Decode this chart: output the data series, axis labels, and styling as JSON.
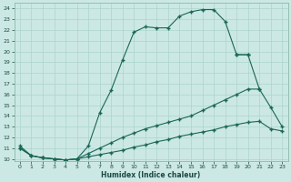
{
  "xlabel": "Humidex (Indice chaleur)",
  "bg_color": "#cce8e4",
  "grid_color": "#aad4cc",
  "line_color": "#1a6655",
  "xlim": [
    -0.5,
    23.5
  ],
  "ylim": [
    9.8,
    24.5
  ],
  "xticks": [
    0,
    1,
    2,
    3,
    4,
    5,
    6,
    7,
    8,
    9,
    10,
    11,
    12,
    13,
    14,
    15,
    16,
    17,
    18,
    19,
    20,
    21,
    22,
    23
  ],
  "yticks": [
    10,
    11,
    12,
    13,
    14,
    15,
    16,
    17,
    18,
    19,
    20,
    21,
    22,
    23,
    24
  ],
  "line1_x": [
    0,
    1,
    2,
    3,
    4,
    5,
    6,
    7,
    8,
    9,
    10,
    11,
    12,
    13,
    14,
    15,
    16,
    17,
    18,
    19,
    20
  ],
  "line1_y": [
    11.2,
    10.3,
    10.1,
    10.0,
    9.9,
    10.0,
    11.2,
    14.3,
    16.4,
    19.2,
    21.8,
    22.3,
    22.2,
    22.2,
    23.3,
    23.7,
    23.9,
    23.9,
    22.8,
    19.7,
    19.7
  ],
  "line2_x": [
    19,
    20,
    21,
    22,
    23
  ],
  "line2_y": [
    19.7,
    19.7,
    16.5,
    14.8,
    13.0
  ],
  "line3_x": [
    0,
    1,
    2,
    3,
    4,
    5,
    6,
    7,
    8,
    9,
    10,
    11,
    12,
    13,
    14,
    15,
    16,
    17,
    18,
    19,
    20,
    21
  ],
  "line3_y": [
    11.0,
    10.3,
    10.1,
    10.0,
    9.9,
    10.0,
    10.5,
    11.0,
    11.5,
    12.0,
    12.4,
    12.8,
    13.1,
    13.4,
    13.7,
    14.0,
    14.5,
    15.0,
    15.5,
    16.0,
    16.5,
    16.5
  ],
  "line4_x": [
    0,
    1,
    2,
    3,
    4,
    5,
    6,
    7,
    8,
    9,
    10,
    11,
    12,
    13,
    14,
    15,
    16,
    17,
    18,
    19,
    20,
    21,
    22,
    23
  ],
  "line4_y": [
    11.0,
    10.3,
    10.1,
    10.0,
    9.9,
    10.0,
    10.2,
    10.4,
    10.6,
    10.8,
    11.1,
    11.3,
    11.6,
    11.8,
    12.1,
    12.3,
    12.5,
    12.7,
    13.0,
    13.2,
    13.4,
    13.5,
    12.8,
    12.6
  ]
}
